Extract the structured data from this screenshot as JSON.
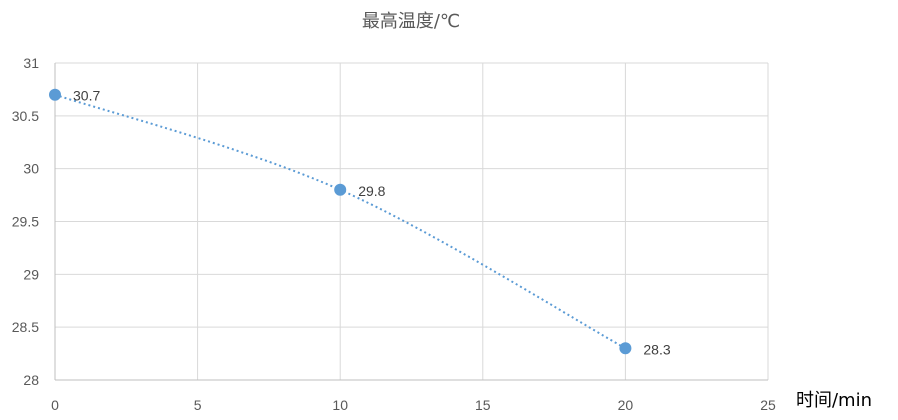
{
  "chart_data": {
    "type": "scatter",
    "title": "最高温度/℃",
    "xlabel": "时间/min",
    "ylabel": "",
    "xlim": [
      0,
      25
    ],
    "ylim": [
      28,
      31
    ],
    "xticks": [
      0,
      5,
      10,
      15,
      20,
      25
    ],
    "yticks": [
      28,
      28.5,
      29,
      29.5,
      30,
      30.5,
      31
    ],
    "grid": true,
    "legend": "none",
    "series": [
      {
        "x": [
          0,
          10,
          20
        ],
        "y": [
          30.7,
          29.8,
          28.3
        ],
        "labels": [
          "30.7",
          "29.8",
          "28.3"
        ],
        "color": "#5b9bd5",
        "line_style": "dotted-smooth"
      }
    ]
  }
}
